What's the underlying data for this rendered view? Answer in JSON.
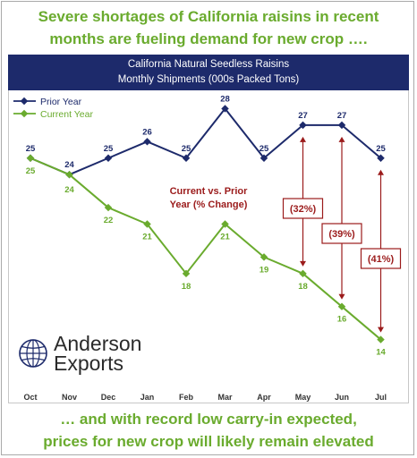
{
  "headline_top": [
    "Severe shortages of California raisins in recent",
    "months are fueling demand for new crop …."
  ],
  "headline_bottom": [
    "… and with record low carry-in expected,",
    "prices for new crop will likely remain elevated"
  ],
  "logo": {
    "line1": "Anderson",
    "line2": "Exports"
  },
  "colors": {
    "prior": "#1d2a6b",
    "current": "#6aab2e",
    "annotation": "#9b1b1b",
    "banner": "#1d2a6b"
  },
  "chart_data": {
    "type": "line",
    "title": "California Natural Seedless Raisins",
    "subtitle": "Monthly Shipments (000s Packed Tons)",
    "categories": [
      "Oct",
      "Nov",
      "Dec",
      "Jan",
      "Feb",
      "Mar",
      "Apr",
      "May",
      "Jun",
      "Jul"
    ],
    "series": [
      {
        "name": "Prior Year",
        "values": [
          25,
          24,
          25,
          26,
          25,
          28,
          25,
          27,
          27,
          25
        ]
      },
      {
        "name": "Current Year",
        "values": [
          25,
          24,
          22,
          21,
          18,
          21,
          19,
          18,
          16,
          14
        ]
      }
    ],
    "ylim": [
      13,
      29
    ],
    "grid": false,
    "legend": "top-left",
    "annotation_title": [
      "Current vs. Prior",
      "Year (% Change)"
    ],
    "changes": [
      {
        "month": "May",
        "label": "(32%)"
      },
      {
        "month": "Jun",
        "label": "(39%)"
      },
      {
        "month": "Jul",
        "label": "(41%)"
      }
    ]
  }
}
